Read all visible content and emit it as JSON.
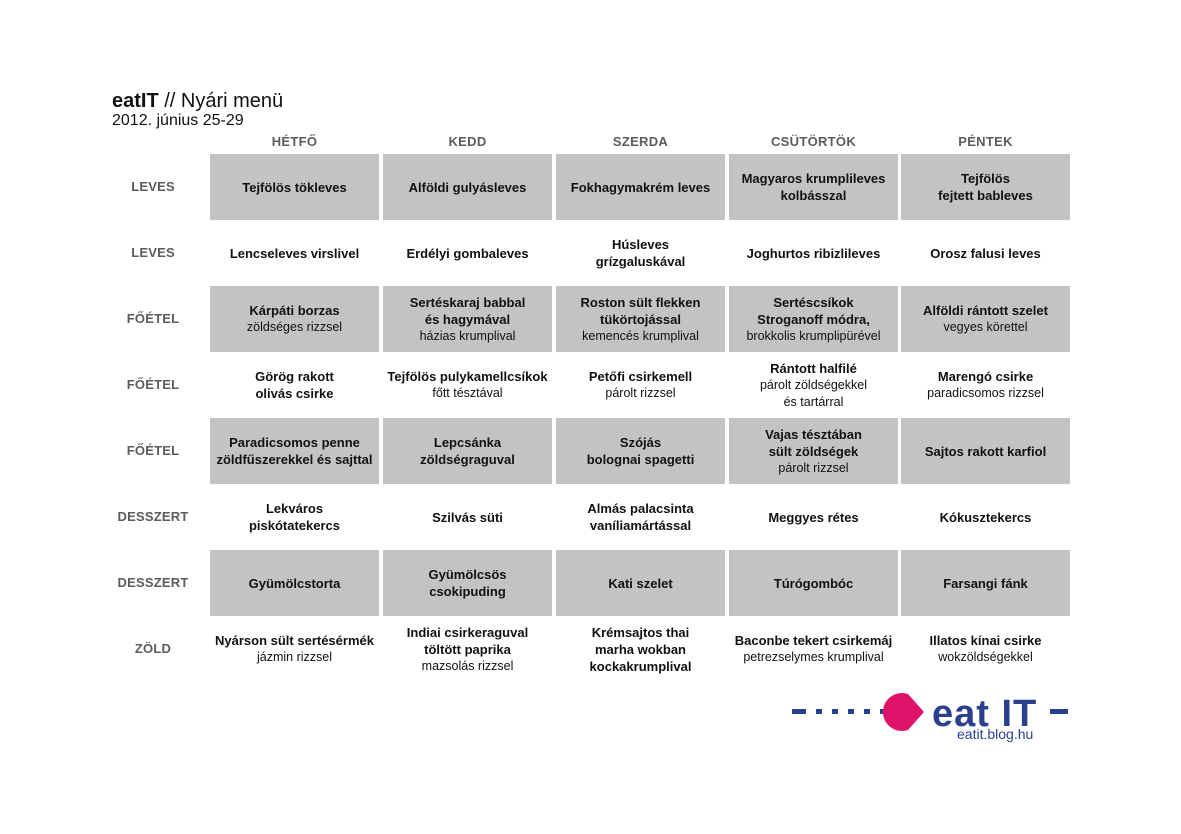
{
  "header": {
    "brand": "eatIT",
    "title_rest": " // Nyári menü",
    "date": "2012. június 25-29"
  },
  "days": [
    "HÉTFŐ",
    "KEDD",
    "SZERDA",
    "CSÜTÖRTÖK",
    "PÉNTEK"
  ],
  "rows": [
    {
      "label": "LEVES",
      "shaded": true,
      "cells": [
        {
          "main": "Tejfölös tökleves",
          "side": ""
        },
        {
          "main": "Alföldi gulyásleves",
          "side": ""
        },
        {
          "main": "Fokhagymakrém leves",
          "side": ""
        },
        {
          "main": "Magyaros krumplileves\nkolbásszal",
          "side": ""
        },
        {
          "main": "Tejfölös\nfejtett bableves",
          "side": ""
        }
      ]
    },
    {
      "label": "LEVES",
      "shaded": false,
      "cells": [
        {
          "main": "Lencseleves virslivel",
          "side": ""
        },
        {
          "main": "Erdélyi gombaleves",
          "side": ""
        },
        {
          "main": "Húsleves\ngrízgaluskával",
          "side": ""
        },
        {
          "main": "Joghurtos ribizlileves",
          "side": ""
        },
        {
          "main": "Orosz falusi leves",
          "side": ""
        }
      ]
    },
    {
      "label": "FŐÉTEL",
      "shaded": true,
      "cells": [
        {
          "main": "Kárpáti borzas",
          "side": "zöldséges rizzsel"
        },
        {
          "main": "Sertéskaraj babbal\nés hagymával",
          "side": "házias krumplival"
        },
        {
          "main": "Roston sült flekken\ntükörtojással",
          "side": "kemencés krumplival"
        },
        {
          "main": "Sertéscsíkok\nStroganoff módra,",
          "side": "brokkolis krumplipürével"
        },
        {
          "main": "Alföldi rántott szelet",
          "side": "vegyes körettel"
        }
      ]
    },
    {
      "label": "FŐÉTEL",
      "shaded": false,
      "cells": [
        {
          "main": "Görög rakott\nolivás  csirke",
          "side": ""
        },
        {
          "main": "Tejfölös pulykamellcsíkok",
          "side": "főtt tésztával"
        },
        {
          "main": "Petőfi csirkemell",
          "side": "párolt rizzsel"
        },
        {
          "main": "Rántott halfilé",
          "side": "párolt zöldségekkel\nés tartárral"
        },
        {
          "main": "Marengó csirke",
          "side": "paradicsomos rizzsel"
        }
      ]
    },
    {
      "label": "FŐÉTEL",
      "shaded": true,
      "cells": [
        {
          "main": "Paradicsomos penne\nzöldfűszerekkel és sajttal",
          "side": ""
        },
        {
          "main": "Lepcsánka zöldségraguval",
          "side": ""
        },
        {
          "main": "Szójás\nbolognai spagetti",
          "side": ""
        },
        {
          "main": "Vajas tésztában\nsült zöldségek",
          "side": "párolt rizzsel"
        },
        {
          "main": "Sajtos rakott karfiol",
          "side": ""
        }
      ]
    },
    {
      "label": "DESSZERT",
      "shaded": false,
      "cells": [
        {
          "main": "Lekváros\npiskótatekercs",
          "side": ""
        },
        {
          "main": "Szilvás süti",
          "side": ""
        },
        {
          "main": "Almás palacsinta\nvaníliamártással",
          "side": ""
        },
        {
          "main": "Meggyes rétes",
          "side": ""
        },
        {
          "main": "Kókusztekercs",
          "side": ""
        }
      ]
    },
    {
      "label": "DESSZERT",
      "shaded": true,
      "cells": [
        {
          "main": "Gyümölcstorta",
          "side": ""
        },
        {
          "main": "Gyümölcsös\ncsokipuding",
          "side": ""
        },
        {
          "main": "Kati szelet",
          "side": ""
        },
        {
          "main": "Túrógombóc",
          "side": ""
        },
        {
          "main": "Farsangi fánk",
          "side": ""
        }
      ]
    },
    {
      "label": "ZÖLD",
      "shaded": false,
      "cells": [
        {
          "main": "Nyárson sült sertésérmék",
          "side": "jázmin rizzsel"
        },
        {
          "main": "Indiai csirkeraguval\ntöltött paprika",
          "side": "mazsolás rizzsel"
        },
        {
          "main": "Krémsajtos thai\nmarha wokban\nkockakrumplival",
          "side": ""
        },
        {
          "main": "Baconbe tekert csirkemáj",
          "side": "petrezselymes krumplival"
        },
        {
          "main": "Illatos kínai csirke",
          "side": "wokzöldségekkel"
        }
      ]
    }
  ],
  "logo": {
    "text": "eat IT",
    "url": "eatit.blog.hu",
    "colors": {
      "blue": "#2b3f8f",
      "pink": "#e0136b"
    },
    "icon": "pacman-logo-icon"
  }
}
